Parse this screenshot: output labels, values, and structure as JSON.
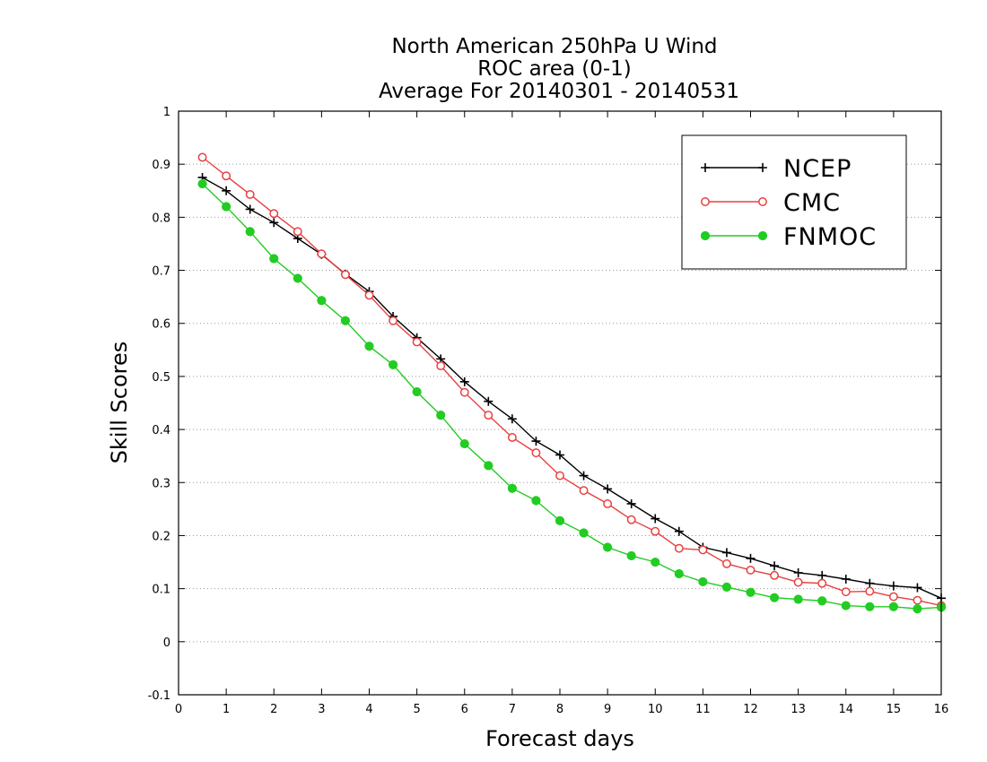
{
  "chart_data": {
    "type": "line",
    "title": [
      "North American 250hPa U Wind",
      "ROC area (0-1)",
      "Average For 20140301 - 20140531"
    ],
    "xlabel": "Forecast days",
    "ylabel": "Skill Scores",
    "xlim": [
      0,
      16
    ],
    "ylim": [
      -0.1,
      1
    ],
    "xticks": [
      "0",
      "1",
      "2",
      "3",
      "4",
      "5",
      "6",
      "7",
      "8",
      "9",
      "10",
      "11",
      "12",
      "13",
      "14",
      "15",
      "16"
    ],
    "yticks": [
      "-0.1",
      "0",
      "0.1",
      "0.2",
      "0.3",
      "0.4",
      "0.5",
      "0.6",
      "0.7",
      "0.8",
      "0.9",
      "1"
    ],
    "grid": true,
    "legend_position": "top-right",
    "x": [
      0.5,
      1,
      1.5,
      2,
      2.5,
      3,
      3.5,
      4,
      4.5,
      5,
      5.5,
      6,
      6.5,
      7,
      7.5,
      8,
      8.5,
      9,
      9.5,
      10,
      10.5,
      11,
      11.5,
      12,
      12.5,
      13,
      13.5,
      14,
      14.5,
      15,
      15.5,
      16
    ],
    "series": [
      {
        "name": "NCEP",
        "color": "#000000",
        "marker": "plus",
        "values": [
          0.875,
          0.85,
          0.815,
          0.79,
          0.76,
          0.73,
          0.693,
          0.66,
          0.613,
          0.573,
          0.533,
          0.49,
          0.453,
          0.42,
          0.378,
          0.352,
          0.313,
          0.288,
          0.26,
          0.232,
          0.208,
          0.178,
          0.168,
          0.157,
          0.143,
          0.13,
          0.125,
          0.118,
          0.11,
          0.105,
          0.102,
          0.082
        ]
      },
      {
        "name": "CMC",
        "color": "#e8403f",
        "marker": "open-circle",
        "values": [
          0.913,
          0.878,
          0.843,
          0.807,
          0.773,
          0.731,
          0.692,
          0.653,
          0.605,
          0.565,
          0.52,
          0.47,
          0.427,
          0.385,
          0.356,
          0.313,
          0.285,
          0.26,
          0.23,
          0.208,
          0.176,
          0.173,
          0.147,
          0.135,
          0.125,
          0.112,
          0.11,
          0.094,
          0.095,
          0.085,
          0.078,
          0.068
        ]
      },
      {
        "name": "FNMOC",
        "color": "#22cc22",
        "marker": "filled-circle",
        "values": [
          0.863,
          0.82,
          0.773,
          0.722,
          0.685,
          0.643,
          0.605,
          0.557,
          0.522,
          0.471,
          0.427,
          0.373,
          0.332,
          0.289,
          0.266,
          0.228,
          0.205,
          0.178,
          0.162,
          0.15,
          0.128,
          0.113,
          0.103,
          0.093,
          0.083,
          0.08,
          0.077,
          0.068,
          0.066,
          0.066,
          0.062,
          0.065
        ]
      }
    ]
  }
}
